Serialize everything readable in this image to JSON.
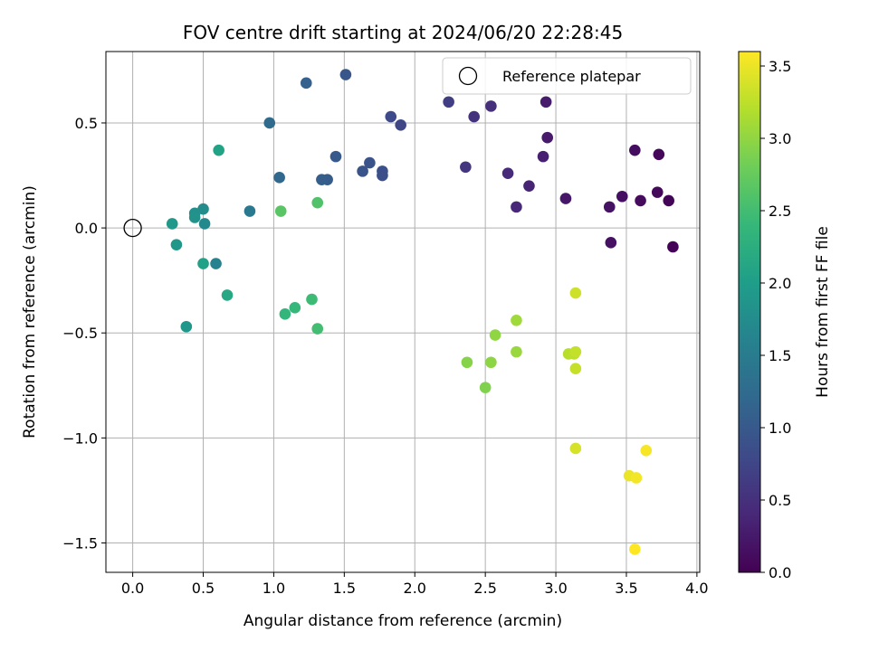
{
  "chart_data": {
    "type": "scatter",
    "title": "FOV centre drift starting at 2024/06/20 22:28:45",
    "xlabel": "Angular distance from reference (arcmin)",
    "ylabel": "Rotation from reference (arcmin)",
    "xlim": [
      -0.19,
      4.02
    ],
    "ylim": [
      -1.64,
      0.84
    ],
    "xticks": [
      0.0,
      0.5,
      1.0,
      1.5,
      2.0,
      2.5,
      3.0,
      3.5,
      4.0
    ],
    "xtick_labels": [
      "0.0",
      "0.5",
      "1.0",
      "1.5",
      "2.0",
      "2.5",
      "3.0",
      "3.5",
      "4.0"
    ],
    "yticks": [
      0.5,
      0.0,
      -0.5,
      -1.0,
      -1.5
    ],
    "ytick_labels": [
      "0.5",
      "0.0",
      "−0.5",
      "−1.0",
      "−1.5"
    ],
    "grid": true,
    "legend": {
      "position": "top-right",
      "entries": [
        "Reference platepar"
      ]
    },
    "reference_point": {
      "x": 0.0,
      "y": 0.0
    },
    "colorbar": {
      "label": "Hours from first FF file",
      "range": [
        0.0,
        3.6
      ],
      "colormap": "viridis",
      "ticks": [
        0.0,
        0.5,
        1.0,
        1.5,
        2.0,
        2.5,
        3.0,
        3.5
      ],
      "tick_labels": [
        "0.0",
        "0.5",
        "1.0",
        "1.5",
        "2.0",
        "2.5",
        "3.0",
        "3.5"
      ]
    },
    "points": [
      {
        "x": 3.83,
        "y": -0.09,
        "c": 0.02
      },
      {
        "x": 3.8,
        "y": 0.13,
        "c": 0.04
      },
      {
        "x": 3.73,
        "y": 0.35,
        "c": 0.06
      },
      {
        "x": 3.72,
        "y": 0.17,
        "c": 0.08
      },
      {
        "x": 3.6,
        "y": 0.13,
        "c": 0.1
      },
      {
        "x": 3.56,
        "y": 0.37,
        "c": 0.12
      },
      {
        "x": 3.47,
        "y": 0.15,
        "c": 0.14
      },
      {
        "x": 3.39,
        "y": -0.07,
        "c": 0.16
      },
      {
        "x": 3.38,
        "y": 0.1,
        "c": 0.18
      },
      {
        "x": 3.07,
        "y": 0.14,
        "c": 0.22
      },
      {
        "x": 2.94,
        "y": 0.43,
        "c": 0.26
      },
      {
        "x": 2.93,
        "y": 0.6,
        "c": 0.28
      },
      {
        "x": 2.91,
        "y": 0.34,
        "c": 0.32
      },
      {
        "x": 2.81,
        "y": 0.2,
        "c": 0.36
      },
      {
        "x": 2.72,
        "y": 0.1,
        "c": 0.4
      },
      {
        "x": 2.66,
        "y": 0.26,
        "c": 0.44
      },
      {
        "x": 2.54,
        "y": 0.58,
        "c": 0.48
      },
      {
        "x": 2.42,
        "y": 0.53,
        "c": 0.52
      },
      {
        "x": 2.36,
        "y": 0.29,
        "c": 0.56
      },
      {
        "x": 2.24,
        "y": 0.6,
        "c": 0.66
      },
      {
        "x": 1.9,
        "y": 0.49,
        "c": 0.76
      },
      {
        "x": 1.83,
        "y": 0.53,
        "c": 0.8
      },
      {
        "x": 1.77,
        "y": 0.25,
        "c": 0.86
      },
      {
        "x": 1.77,
        "y": 0.27,
        "c": 0.88
      },
      {
        "x": 1.68,
        "y": 0.31,
        "c": 0.92
      },
      {
        "x": 1.63,
        "y": 0.27,
        "c": 0.94
      },
      {
        "x": 1.51,
        "y": 0.73,
        "c": 0.96
      },
      {
        "x": 1.44,
        "y": 0.34,
        "c": 1.0
      },
      {
        "x": 1.38,
        "y": 0.23,
        "c": 1.04
      },
      {
        "x": 1.34,
        "y": 0.23,
        "c": 1.06
      },
      {
        "x": 1.23,
        "y": 0.69,
        "c": 1.1
      },
      {
        "x": 1.04,
        "y": 0.24,
        "c": 1.2
      },
      {
        "x": 0.97,
        "y": 0.5,
        "c": 1.24
      },
      {
        "x": 0.83,
        "y": 0.08,
        "c": 1.46
      },
      {
        "x": 0.59,
        "y": -0.17,
        "c": 1.6
      },
      {
        "x": 0.51,
        "y": 0.02,
        "c": 1.7
      },
      {
        "x": 0.5,
        "y": 0.09,
        "c": 1.76
      },
      {
        "x": 0.44,
        "y": 0.07,
        "c": 1.8
      },
      {
        "x": 0.44,
        "y": 0.05,
        "c": 1.84
      },
      {
        "x": 0.38,
        "y": -0.47,
        "c": 1.88
      },
      {
        "x": 0.31,
        "y": -0.08,
        "c": 1.9
      },
      {
        "x": 0.28,
        "y": 0.02,
        "c": 1.92
      },
      {
        "x": 0.5,
        "y": -0.17,
        "c": 2.04
      },
      {
        "x": 0.61,
        "y": 0.37,
        "c": 2.08
      },
      {
        "x": 0.67,
        "y": -0.32,
        "c": 2.14
      },
      {
        "x": 1.08,
        "y": -0.41,
        "c": 2.36
      },
      {
        "x": 1.15,
        "y": -0.38,
        "c": 2.4
      },
      {
        "x": 1.27,
        "y": -0.34,
        "c": 2.46
      },
      {
        "x": 1.31,
        "y": -0.48,
        "c": 2.5
      },
      {
        "x": 1.31,
        "y": 0.12,
        "c": 2.6
      },
      {
        "x": 1.05,
        "y": 0.08,
        "c": 2.66
      },
      {
        "x": 2.5,
        "y": -0.76,
        "c": 2.9
      },
      {
        "x": 2.37,
        "y": -0.64,
        "c": 2.94
      },
      {
        "x": 2.54,
        "y": -0.64,
        "c": 2.98
      },
      {
        "x": 2.57,
        "y": -0.51,
        "c": 3.0
      },
      {
        "x": 2.72,
        "y": -0.59,
        "c": 3.04
      },
      {
        "x": 2.72,
        "y": -0.44,
        "c": 3.08
      },
      {
        "x": 3.09,
        "y": -0.6,
        "c": 3.22
      },
      {
        "x": 3.13,
        "y": -0.6,
        "c": 3.24
      },
      {
        "x": 3.14,
        "y": -0.59,
        "c": 3.28
      },
      {
        "x": 3.14,
        "y": -0.67,
        "c": 3.3
      },
      {
        "x": 3.14,
        "y": -0.31,
        "c": 3.34
      },
      {
        "x": 3.14,
        "y": -1.05,
        "c": 3.38
      },
      {
        "x": 3.52,
        "y": -1.18,
        "c": 3.5
      },
      {
        "x": 3.57,
        "y": -1.19,
        "c": 3.54
      },
      {
        "x": 3.64,
        "y": -1.06,
        "c": 3.56
      },
      {
        "x": 3.56,
        "y": -1.53,
        "c": 3.6
      }
    ]
  }
}
